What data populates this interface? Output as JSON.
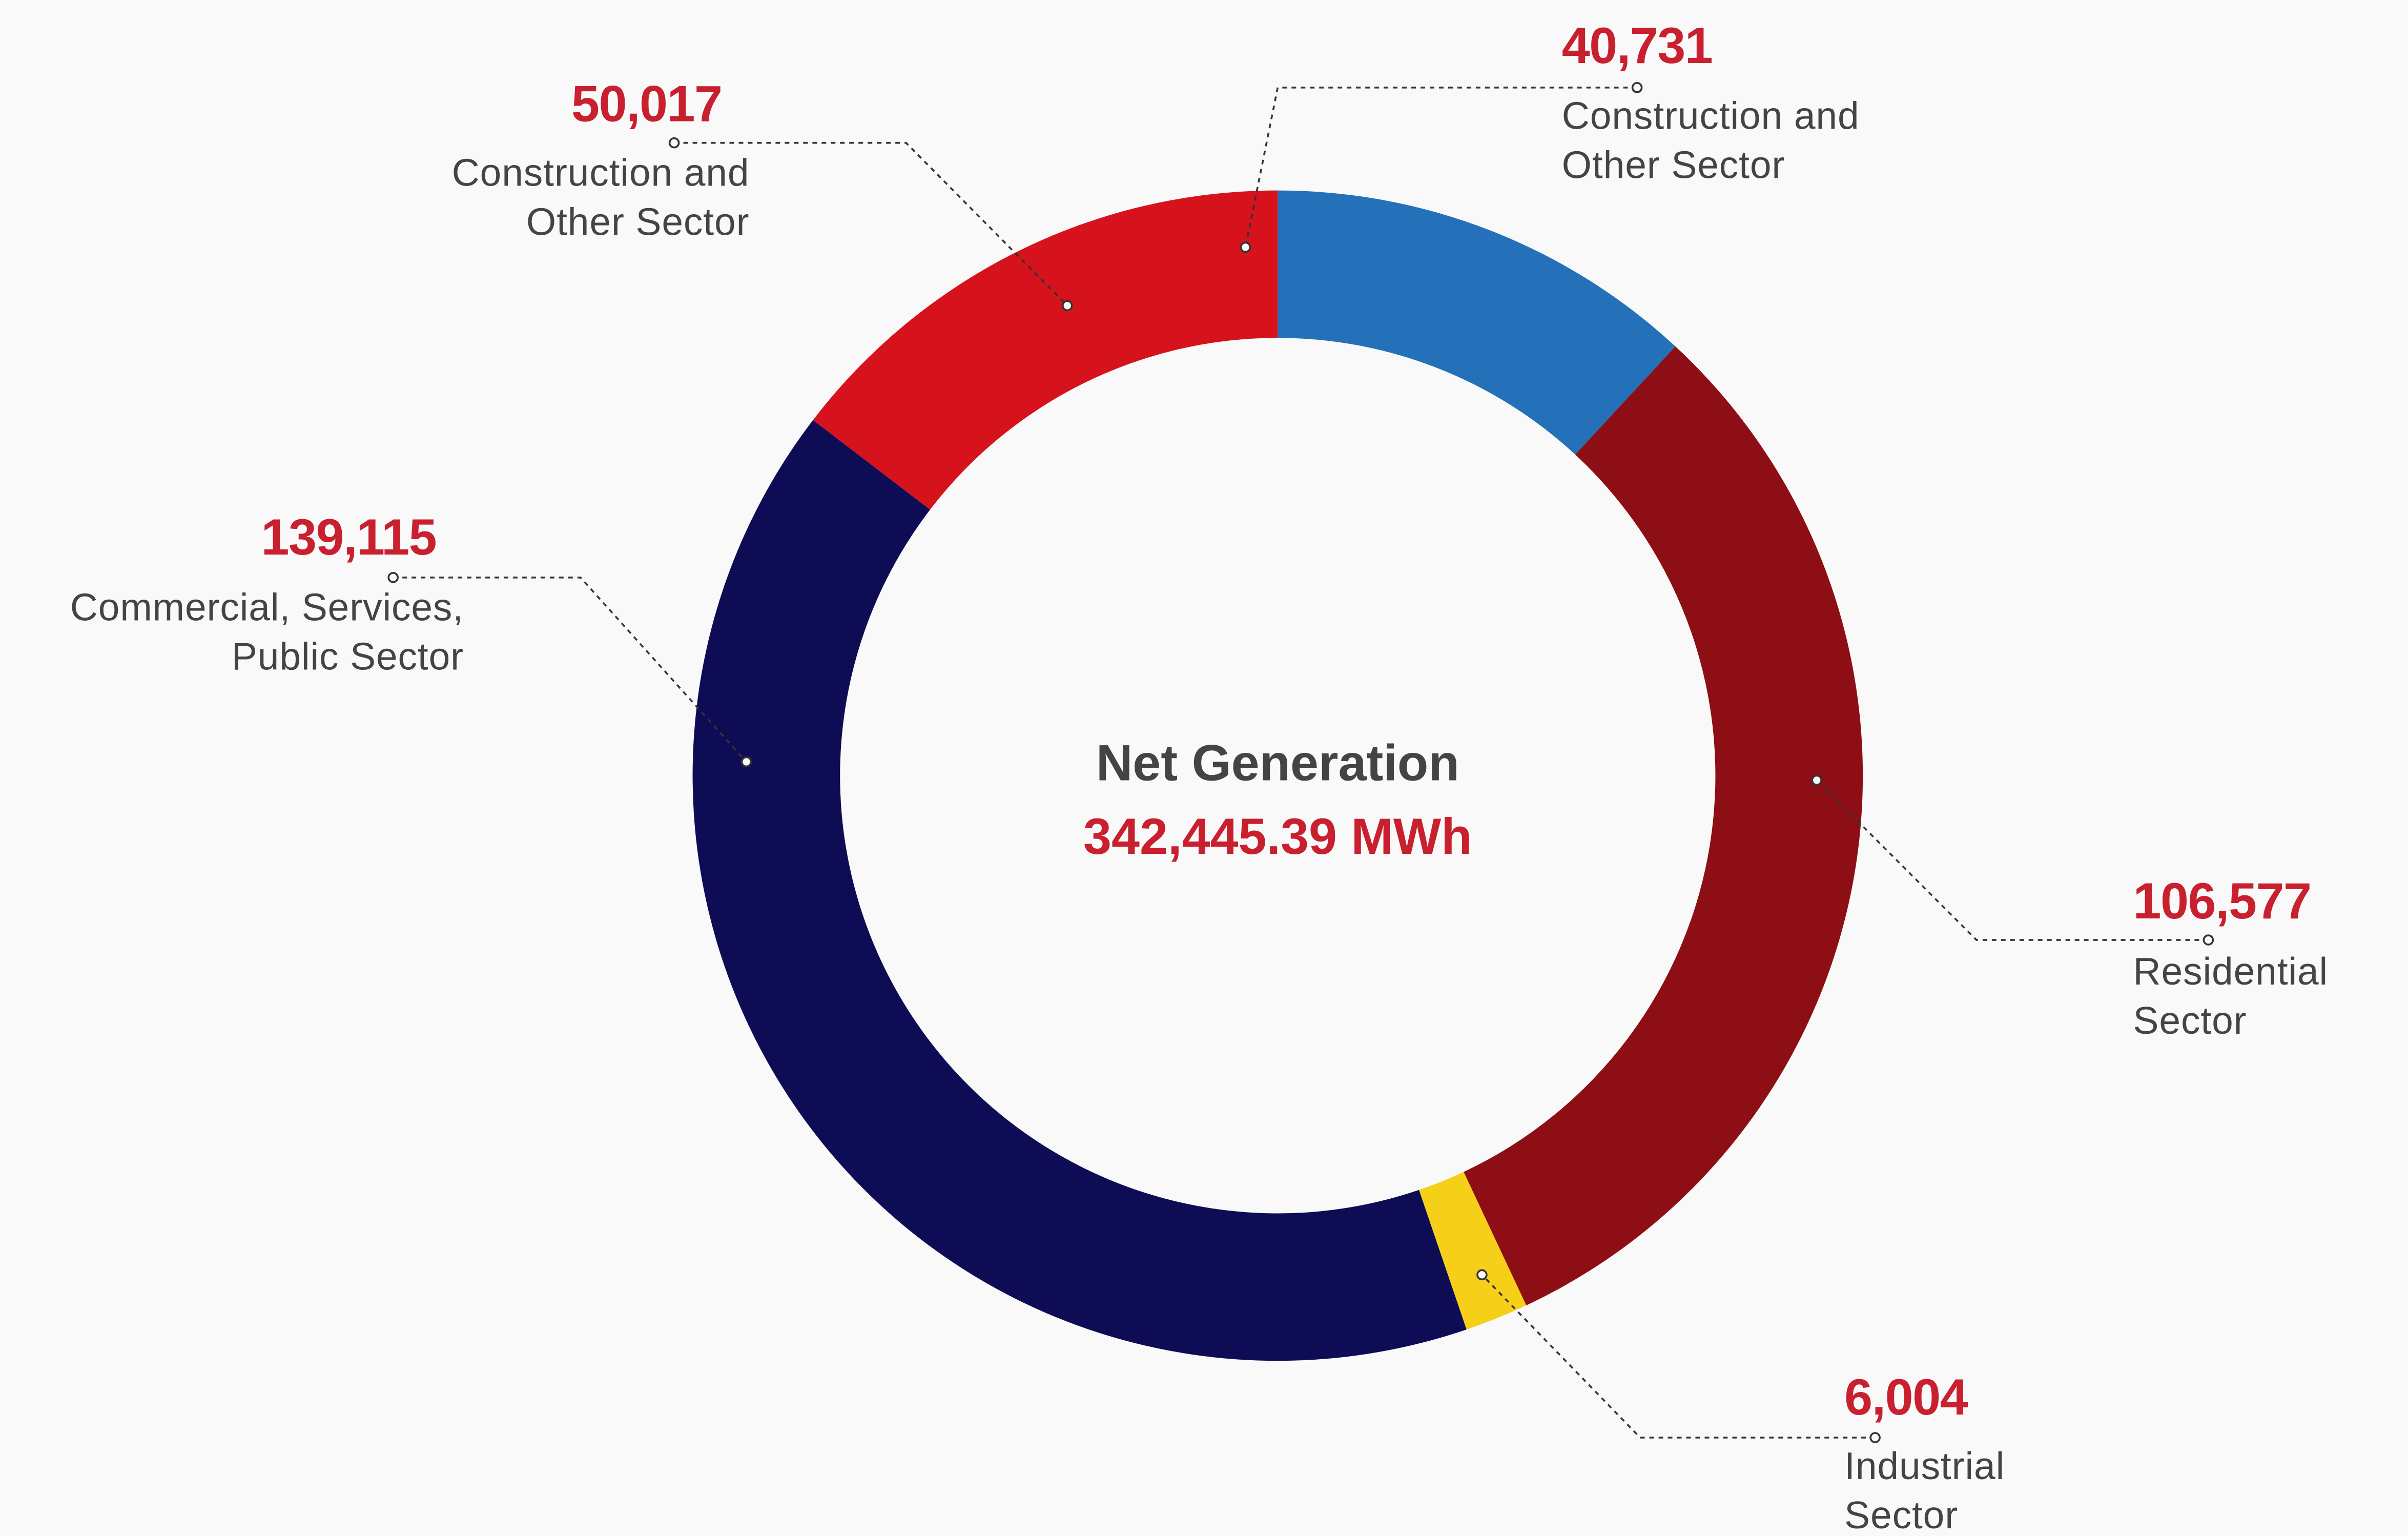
{
  "chart_data": {
    "type": "donut",
    "center_title": "Net Generation",
    "center_value": "342,445.39 MWh",
    "categories": [
      "Construction and\nOther Sector",
      "Residential\nSector",
      "Industrial\nSector",
      "Commercial, Services,\nPublic Sector",
      "Construction and\nOther Sector"
    ],
    "values": [
      40731,
      106577,
      6004,
      139115,
      50017
    ],
    "value_labels": [
      "40,731",
      "106,577",
      "6,004",
      "139,115",
      "50,017"
    ],
    "colors": [
      "#2471ba",
      "#8e0e15",
      "#f6d018",
      "#0e0c55",
      "#d6121d"
    ]
  }
}
